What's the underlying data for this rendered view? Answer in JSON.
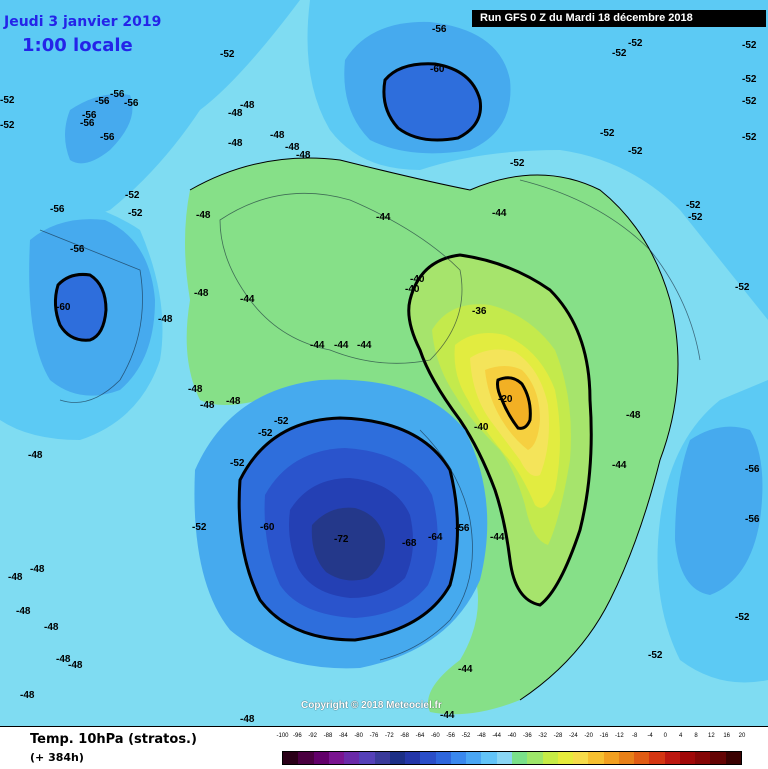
{
  "header": {
    "date": "Jeudi 3 janvier 2019",
    "time": "1:00 locale",
    "run_info": "Run GFS 0 Z du Mardi 18 décembre 2018"
  },
  "footer": {
    "variable": "Temp. 10hPa (stratos.)",
    "lead_time": "(+ 384h)",
    "copyright": "Copyright © 2018 Meteociel.fr"
  },
  "legend": {
    "ticks": [
      "-100",
      "-96",
      "-92",
      "-88",
      "-84",
      "-80",
      "-76",
      "-72",
      "-68",
      "-64",
      "-60",
      "-56",
      "-52",
      "-48",
      "-44",
      "-40",
      "-36",
      "-32",
      "-28",
      "-24",
      "-20",
      "-16",
      "-12",
      "-8",
      "-4",
      "0",
      "4",
      "8",
      "12",
      "16",
      "20"
    ],
    "colors": [
      "#2a0018",
      "#4a0040",
      "#62006a",
      "#7a1490",
      "#6a2aa8",
      "#5540b8",
      "#3a3a9a",
      "#1c2f86",
      "#2436a8",
      "#2a4ec8",
      "#2e66dc",
      "#3a88ee",
      "#4aa6f4",
      "#62c4f8",
      "#8ad6f4",
      "#7ae08a",
      "#9ee66a",
      "#c6ec46",
      "#e6ec3c",
      "#f6dc4a",
      "#f6c030",
      "#f2a020",
      "#e88018",
      "#e05c14",
      "#d43612",
      "#bc1810",
      "#a00808",
      "#840606",
      "#640404",
      "#3a0202"
    ]
  },
  "map": {
    "colors": {
      "band_m56": "#46aaee",
      "band_m52": "#5ccaf4",
      "band_m48": "#7fdcf2",
      "band_m44": "#86e088",
      "band_m40": "#a6e46c",
      "band_m36": "#c4ea4c",
      "band_m32": "#e2ec40",
      "band_m28": "#f4e45a",
      "band_m24": "#f6d040",
      "band_m20": "#f2b024",
      "band_m60": "#2e6edc",
      "band_m64": "#2a54cc",
      "band_m68": "#2440b4",
      "band_m72": "#24388a"
    },
    "labels": [
      {
        "text": "-56"
      },
      {
        "text": "-60"
      },
      {
        "text": "-52"
      },
      {
        "text": "-48"
      },
      {
        "text": "-44"
      },
      {
        "text": "-40"
      },
      {
        "text": "-36"
      },
      {
        "text": "-20"
      },
      {
        "text": "-64"
      },
      {
        "text": "-68"
      },
      {
        "text": "-72"
      }
    ]
  }
}
